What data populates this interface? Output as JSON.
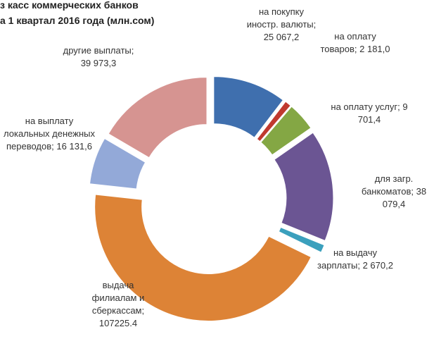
{
  "chart_data": {
    "type": "donut",
    "title": [
      "з касс коммерческих банков",
      "а 1 квартал 2016 года  (млн.сом)"
    ],
    "label_separator": "; ",
    "categories": [
      "на покупку иностр. валюты",
      "на оплату товаров",
      "на оплату услуг",
      "для загр. банкоматов",
      "на выдачу зарплаты",
      "выдача филиалам и сберкассам",
      "на выплату локальных денежных переводов",
      "другие выплаты"
    ],
    "values": [
      25067.2,
      2181.0,
      9701.4,
      38079.4,
      2670.2,
      107225.4,
      16131.6,
      39973.3
    ],
    "value_labels": [
      "25 067,2",
      "2 181,0",
      "9 701,4",
      "38 079,4",
      "2 670,2",
      "107225.4",
      "16 131,6",
      "39 973,3"
    ],
    "colors": [
      "#3f6fae",
      "#c0392f",
      "#84a744",
      "#6b5593",
      "#3ba0bd",
      "#dd8336",
      "#93a9d8",
      "#d69491"
    ]
  }
}
